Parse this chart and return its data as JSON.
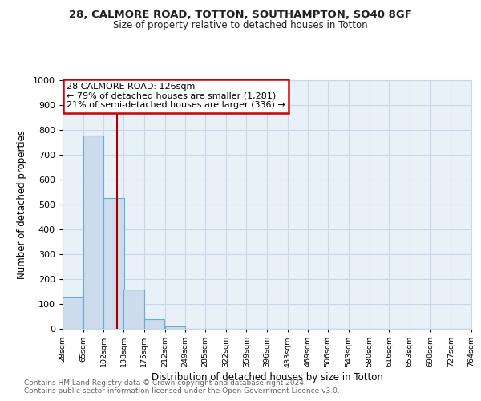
{
  "title1": "28, CALMORE ROAD, TOTTON, SOUTHAMPTON, SO40 8GF",
  "title2": "Size of property relative to detached houses in Totton",
  "xlabel": "Distribution of detached houses by size in Totton",
  "ylabel": "Number of detached properties",
  "bin_edges": [
    28,
    65,
    102,
    138,
    175,
    212,
    249,
    285,
    322,
    359,
    396,
    433,
    469,
    506,
    543,
    580,
    616,
    653,
    690,
    727,
    764
  ],
  "bar_heights": [
    130,
    778,
    525,
    158,
    38,
    10,
    0,
    0,
    0,
    0,
    0,
    0,
    0,
    0,
    0,
    0,
    0,
    0,
    0,
    0
  ],
  "bar_color": "#ccdcec",
  "bar_edge_color": "#6aaad4",
  "tick_labels": [
    "28sqm",
    "65sqm",
    "102sqm",
    "138sqm",
    "175sqm",
    "212sqm",
    "249sqm",
    "285sqm",
    "322sqm",
    "359sqm",
    "396sqm",
    "433sqm",
    "469sqm",
    "506sqm",
    "543sqm",
    "580sqm",
    "616sqm",
    "653sqm",
    "690sqm",
    "727sqm",
    "764sqm"
  ],
  "property_size": 126,
  "vline_color": "#aa0000",
  "annotation_title": "28 CALMORE ROAD: 126sqm",
  "annotation_line1": "← 79% of detached houses are smaller (1,281)",
  "annotation_line2": "21% of semi-detached houses are larger (336) →",
  "annotation_box_facecolor": "#ffffff",
  "annotation_box_edgecolor": "#cc0000",
  "ylim": [
    0,
    1000
  ],
  "yticks": [
    0,
    100,
    200,
    300,
    400,
    500,
    600,
    700,
    800,
    900,
    1000
  ],
  "footer1": "Contains HM Land Registry data © Crown copyright and database right 2024.",
  "footer2": "Contains public sector information licensed under the Open Government Licence v3.0.",
  "bg_color": "#ffffff",
  "plot_bg_color": "#e8f0f8",
  "grid_color": "#c8d8e8",
  "spine_color": "#c8d8e8"
}
